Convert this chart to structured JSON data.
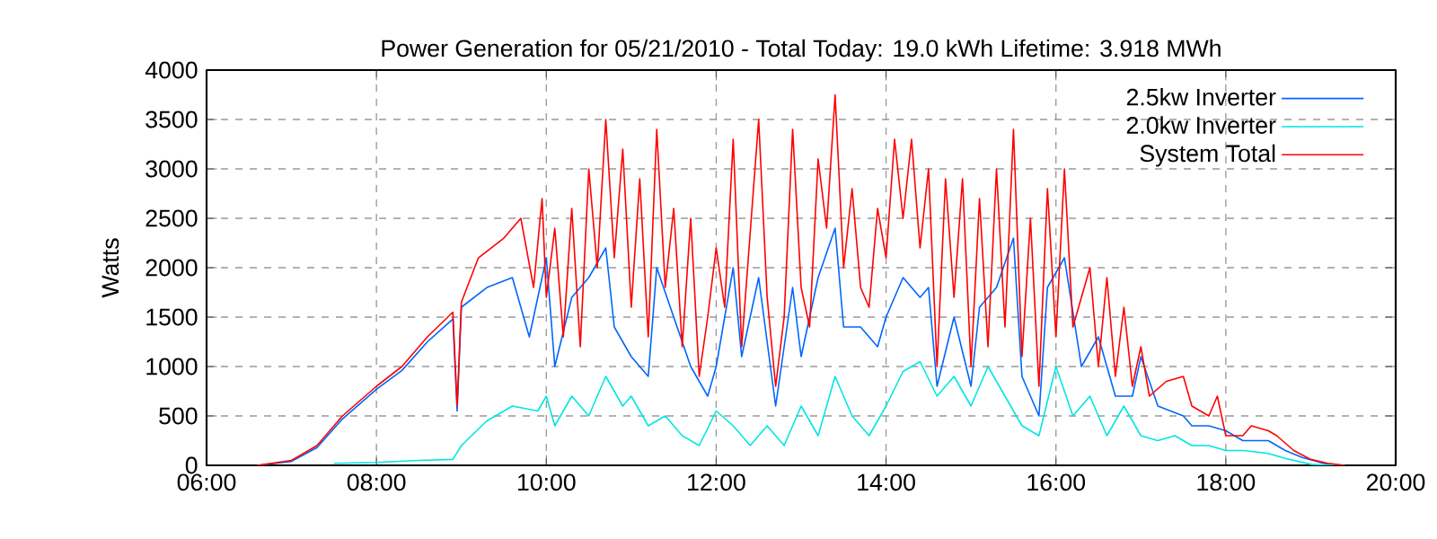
{
  "chart_data": {
    "type": "line",
    "title": "Power Generation for 05/21/2010 - Total Today: 19.0 kWh   Lifetime: 3.918 MWh",
    "ylabel": "Watts",
    "xlim": [
      6,
      20
    ],
    "ylim": [
      0,
      4000
    ],
    "xticks": [
      {
        "value": 6,
        "label": "06:00"
      },
      {
        "value": 8,
        "label": "08:00"
      },
      {
        "value": 10,
        "label": "10:00"
      },
      {
        "value": 12,
        "label": "12:00"
      },
      {
        "value": 14,
        "label": "14:00"
      },
      {
        "value": 16,
        "label": "16:00"
      },
      {
        "value": 18,
        "label": "18:00"
      },
      {
        "value": 20,
        "label": "20:00"
      }
    ],
    "yticks": [
      0,
      500,
      1000,
      1500,
      2000,
      2500,
      3000,
      3500,
      4000
    ],
    "grid": true,
    "legend": "top right",
    "marker": "none",
    "line_style": "solid",
    "series": [
      {
        "name": "2.5kw Inverter",
        "color": "#0066ff",
        "x": [
          6.6,
          7.0,
          7.3,
          7.6,
          8.0,
          8.3,
          8.6,
          8.9,
          8.95,
          9.0,
          9.3,
          9.6,
          9.8,
          10.0,
          10.1,
          10.3,
          10.5,
          10.7,
          10.8,
          11.0,
          11.2,
          11.3,
          11.5,
          11.7,
          11.9,
          12.0,
          12.2,
          12.3,
          12.5,
          12.7,
          12.9,
          13.0,
          13.2,
          13.4,
          13.5,
          13.7,
          13.9,
          14.0,
          14.2,
          14.4,
          14.5,
          14.6,
          14.8,
          15.0,
          15.1,
          15.3,
          15.5,
          15.6,
          15.8,
          15.9,
          16.1,
          16.3,
          16.5,
          16.7,
          16.9,
          17.0,
          17.2,
          17.5,
          17.6,
          17.8,
          18.0,
          18.2,
          18.5,
          18.7,
          18.9,
          19.2,
          19.4
        ],
        "values": [
          0,
          40,
          180,
          470,
          770,
          960,
          1250,
          1480,
          550,
          1600,
          1800,
          1900,
          1300,
          2100,
          1000,
          1700,
          1900,
          2200,
          1400,
          1100,
          900,
          2000,
          1500,
          1000,
          700,
          1000,
          2000,
          1100,
          1900,
          600,
          1800,
          1100,
          1900,
          2400,
          1400,
          1400,
          1200,
          1500,
          1900,
          1700,
          1800,
          800,
          1500,
          800,
          1600,
          1800,
          2300,
          900,
          500,
          1800,
          2100,
          1000,
          1300,
          700,
          700,
          1100,
          600,
          500,
          400,
          400,
          350,
          250,
          250,
          150,
          80,
          10,
          0
        ]
      },
      {
        "name": "2.0kw Inverter",
        "color": "#00e5e5",
        "x": [
          7.5,
          8.0,
          8.5,
          8.9,
          9.0,
          9.3,
          9.6,
          9.9,
          10.0,
          10.1,
          10.3,
          10.5,
          10.7,
          10.9,
          11.0,
          11.2,
          11.4,
          11.6,
          11.8,
          12.0,
          12.2,
          12.4,
          12.6,
          12.8,
          13.0,
          13.2,
          13.4,
          13.6,
          13.8,
          14.0,
          14.2,
          14.4,
          14.6,
          14.8,
          15.0,
          15.2,
          15.4,
          15.6,
          15.8,
          16.0,
          16.2,
          16.4,
          16.6,
          16.8,
          17.0,
          17.2,
          17.4,
          17.6,
          17.8,
          18.0,
          18.2,
          18.5,
          18.7,
          19.0,
          19.3
        ],
        "values": [
          20,
          30,
          50,
          60,
          200,
          450,
          600,
          550,
          700,
          400,
          700,
          500,
          900,
          600,
          700,
          400,
          500,
          300,
          200,
          550,
          400,
          200,
          400,
          200,
          600,
          300,
          900,
          500,
          300,
          600,
          950,
          1050,
          700,
          900,
          600,
          1000,
          700,
          400,
          300,
          1000,
          500,
          700,
          300,
          600,
          300,
          250,
          300,
          200,
          200,
          150,
          150,
          120,
          70,
          10,
          0
        ]
      },
      {
        "name": "System Total",
        "color": "#ff0000",
        "x": [
          6.6,
          7.0,
          7.3,
          7.6,
          8.0,
          8.3,
          8.6,
          8.9,
          8.95,
          9.0,
          9.2,
          9.5,
          9.7,
          9.85,
          9.95,
          10.0,
          10.1,
          10.2,
          10.3,
          10.4,
          10.5,
          10.6,
          10.7,
          10.8,
          10.9,
          11.0,
          11.1,
          11.2,
          11.3,
          11.4,
          11.5,
          11.6,
          11.7,
          11.8,
          11.9,
          12.0,
          12.1,
          12.2,
          12.3,
          12.5,
          12.6,
          12.7,
          12.8,
          12.9,
          13.0,
          13.1,
          13.2,
          13.3,
          13.4,
          13.5,
          13.6,
          13.7,
          13.8,
          13.9,
          14.0,
          14.1,
          14.2,
          14.3,
          14.4,
          14.5,
          14.6,
          14.7,
          14.8,
          14.9,
          15.0,
          15.1,
          15.2,
          15.3,
          15.4,
          15.5,
          15.6,
          15.7,
          15.8,
          15.9,
          16.0,
          16.1,
          16.2,
          16.4,
          16.5,
          16.6,
          16.7,
          16.8,
          16.9,
          17.0,
          17.1,
          17.3,
          17.5,
          17.6,
          17.8,
          17.9,
          18.0,
          18.2,
          18.3,
          18.5,
          18.6,
          18.8,
          19.0,
          19.2,
          19.4
        ],
        "values": [
          0,
          50,
          200,
          500,
          800,
          1000,
          1300,
          1550,
          600,
          1650,
          2100,
          2300,
          2500,
          1800,
          2700,
          1700,
          2400,
          1300,
          2600,
          1200,
          3000,
          2000,
          3500,
          2100,
          3200,
          1600,
          2900,
          1300,
          3400,
          1800,
          2600,
          1200,
          2500,
          900,
          1500,
          2200,
          1600,
          3300,
          1200,
          3500,
          1700,
          800,
          1500,
          3400,
          1800,
          1400,
          3100,
          2400,
          3750,
          2000,
          2800,
          1800,
          1600,
          2600,
          2100,
          3300,
          2500,
          3300,
          2200,
          3000,
          1000,
          2900,
          1700,
          2900,
          1000,
          2700,
          1200,
          3000,
          1400,
          3400,
          1100,
          2500,
          800,
          2800,
          1300,
          3000,
          1400,
          2000,
          1000,
          1900,
          900,
          1600,
          800,
          1200,
          700,
          850,
          900,
          600,
          500,
          700,
          300,
          300,
          400,
          350,
          300,
          150,
          60,
          20,
          0
        ]
      }
    ]
  }
}
